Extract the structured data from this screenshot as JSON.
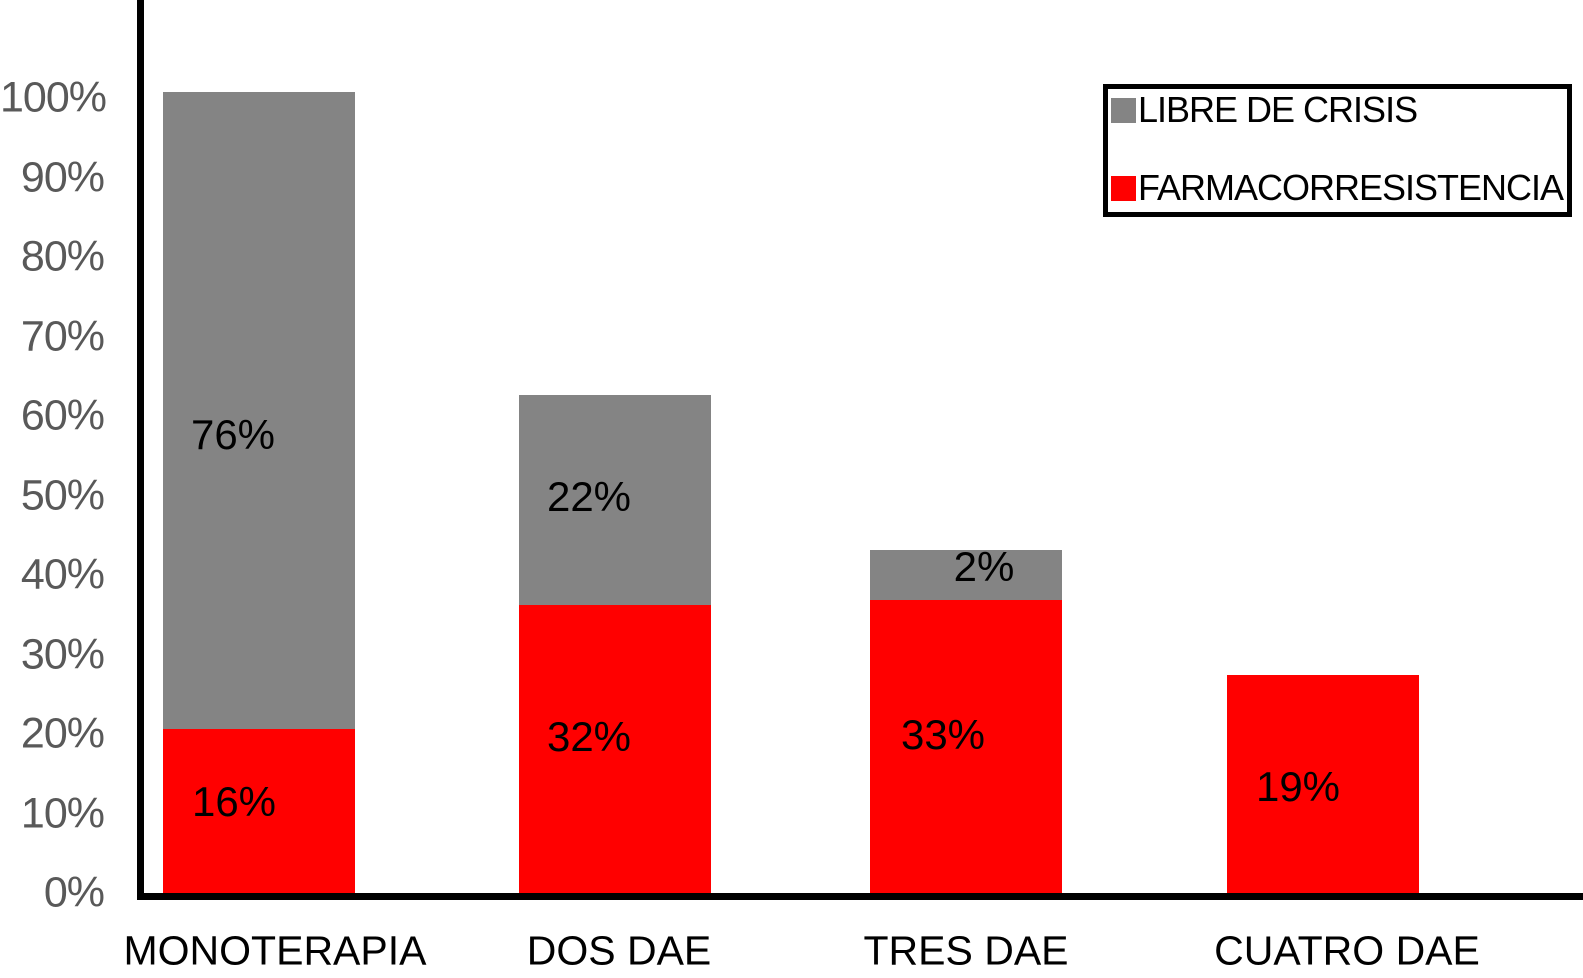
{
  "page": {
    "background": "#ffffff"
  },
  "chart_data": {
    "type": "bar",
    "stacked": true,
    "title": "",
    "categories": [
      "MONOTERAPIA",
      "DOS DAE",
      "TRES DAE",
      "CUATRO DAE"
    ],
    "series": [
      {
        "name": "FARMACORRESISTENCIA",
        "color": "#ff0000",
        "position": "bottom",
        "values": [
          16,
          32,
          33,
          19
        ],
        "data_labels": [
          "16%",
          "32%",
          "33%",
          "19%"
        ],
        "drawn_heights_pct": [
          20.6,
          36.2,
          36.9,
          27.4
        ]
      },
      {
        "name": "LIBRE DE CRISIS",
        "color": "#848484",
        "position": "top",
        "values": [
          76,
          22,
          2,
          null
        ],
        "data_labels": [
          "76%",
          "22%",
          "2%",
          ""
        ],
        "drawn_heights_pct": [
          80.2,
          26.4,
          6.3,
          0
        ]
      }
    ],
    "y_axis": {
      "min": 0,
      "max": 100,
      "ticks": [
        "0%",
        "10%",
        "20%",
        "30%",
        "40%",
        "50%",
        "60%",
        "70%",
        "80%",
        "90%",
        "100%"
      ],
      "tick_color": "#595959"
    },
    "x_axis": {
      "label_color": "#000000"
    },
    "axis_line_color": "#000000",
    "data_label_color": "#000000",
    "grid": false,
    "legend": {
      "position": "top-right",
      "border_color": "#000000",
      "entries": [
        {
          "label": "LIBRE DE CRISIS",
          "color": "#848484"
        },
        {
          "label": "FARMACORRESISTENCIA",
          "color": "#ff0000"
        }
      ]
    }
  }
}
